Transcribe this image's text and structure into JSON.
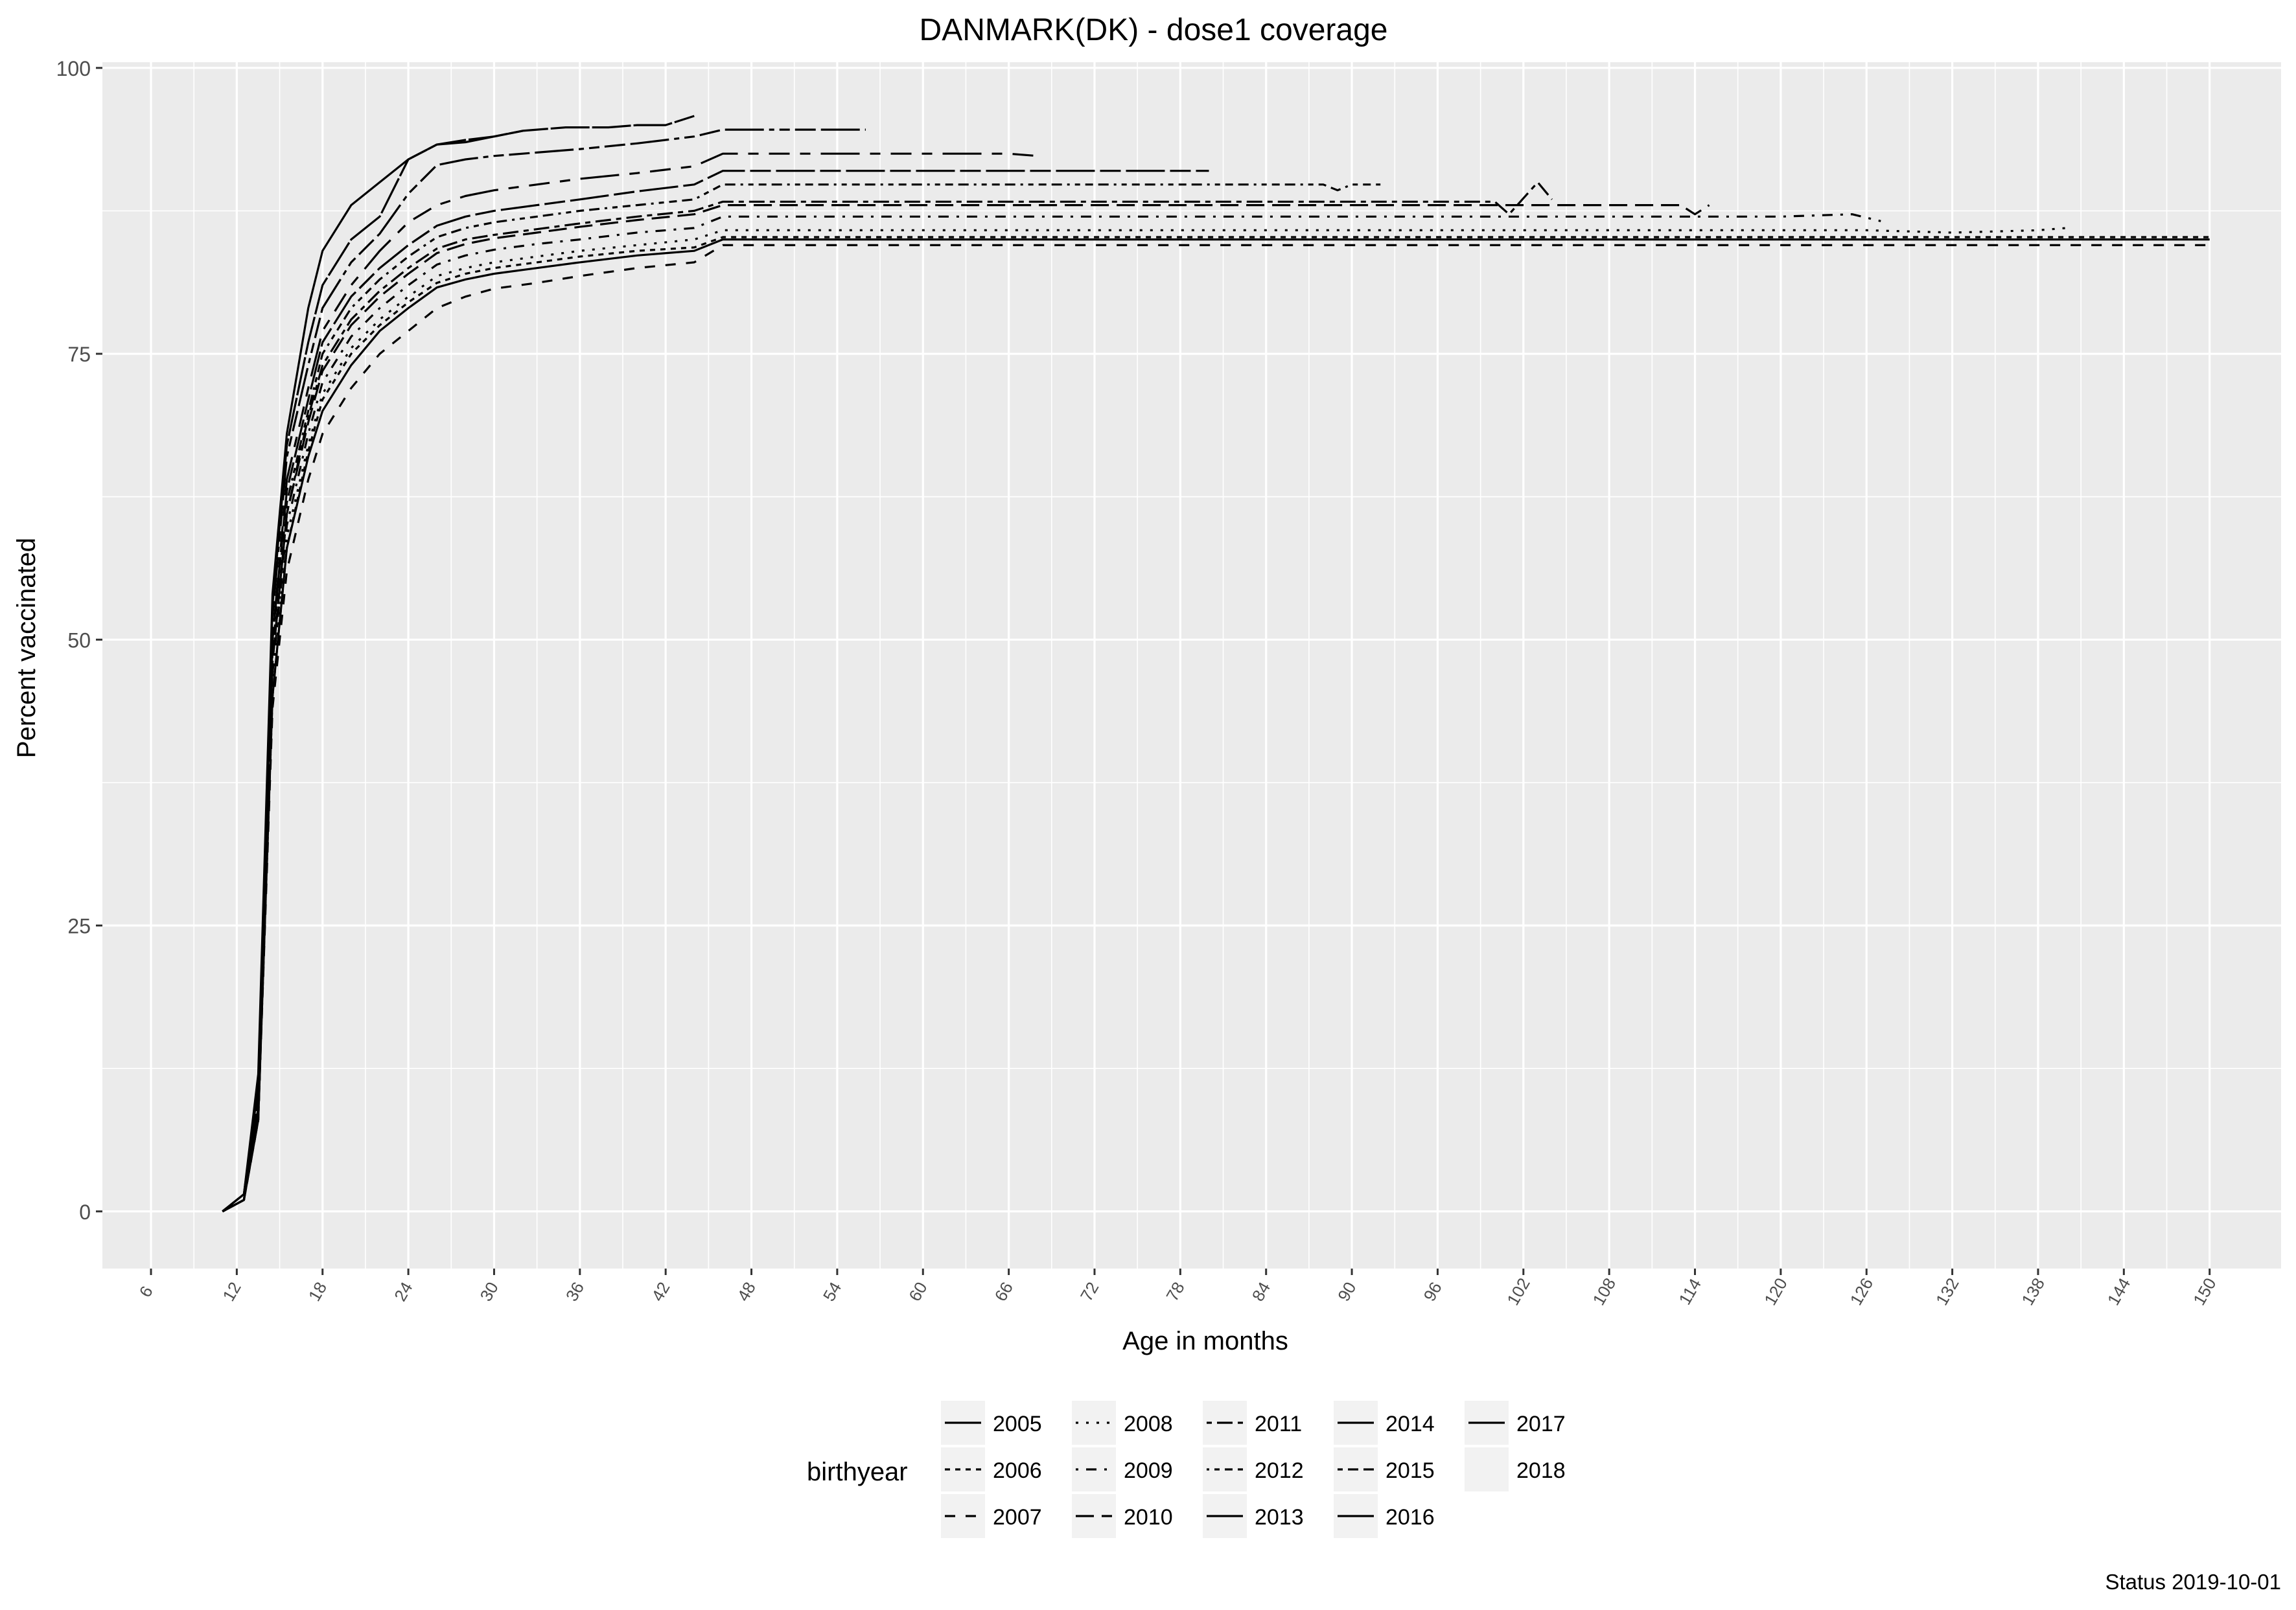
{
  "chart_data": {
    "type": "line",
    "title": "DANMARK(DK) - dose1 coverage",
    "xlabel": "Age in months",
    "ylabel": "Percent vaccinated",
    "caption": "Status 2019-10-01",
    "xlim": [
      2.6,
      155
    ],
    "ylim": [
      -5,
      100.5
    ],
    "x_ticks": [
      "6",
      "12",
      "18",
      "24",
      "30",
      "36",
      "42",
      "48",
      "54",
      "60",
      "66",
      "72",
      "78",
      "84",
      "90",
      "96",
      "102",
      "108",
      "114",
      "120",
      "126",
      "132",
      "138",
      "144",
      "150"
    ],
    "y_ticks": [
      "0",
      "25",
      "50",
      "75",
      "100"
    ],
    "grid": true,
    "panel_color": "#EBEBEB",
    "line_color": "#000000",
    "legend": {
      "title": "birthyear",
      "position": "bottom",
      "entries": [
        {
          "label": "2005",
          "dash": "solid"
        },
        {
          "label": "2006",
          "dash": "22"
        },
        {
          "label": "2007",
          "dash": "44"
        },
        {
          "label": "2008",
          "dash": "13"
        },
        {
          "label": "2009",
          "dash": "1343"
        },
        {
          "label": "2010",
          "dash": "73"
        },
        {
          "label": "2011",
          "dash": "2262"
        },
        {
          "label": "2012",
          "dash": "12223242"
        },
        {
          "label": "2013",
          "dash": "F282"
        },
        {
          "label": "2014",
          "dash": "F4448444"
        },
        {
          "label": "2015",
          "dash": "224282F2"
        },
        {
          "label": "2016",
          "dash": "F1"
        },
        {
          "label": "2017",
          "dash": "solid"
        },
        {
          "label": "2018",
          "dash": "none"
        }
      ]
    },
    "series": [
      {
        "name": "2005",
        "points": [
          [
            11,
            0
          ],
          [
            12.5,
            1
          ],
          [
            13.5,
            8
          ],
          [
            14.5,
            45
          ],
          [
            15.5,
            58
          ],
          [
            17,
            66
          ],
          [
            18,
            70
          ],
          [
            20,
            74
          ],
          [
            22,
            77
          ],
          [
            24,
            79
          ],
          [
            26,
            80.8
          ],
          [
            28,
            81.5
          ],
          [
            30,
            82
          ],
          [
            33,
            82.5
          ],
          [
            36,
            83
          ],
          [
            40,
            83.6
          ],
          [
            44,
            84
          ],
          [
            46,
            85
          ],
          [
            60,
            85
          ],
          [
            80,
            85
          ],
          [
            100,
            85
          ],
          [
            120,
            85
          ],
          [
            150,
            85
          ]
        ]
      },
      {
        "name": "2006",
        "points": [
          [
            11,
            0
          ],
          [
            12.5,
            1
          ],
          [
            13.5,
            8
          ],
          [
            14.5,
            45
          ],
          [
            15.5,
            58
          ],
          [
            17,
            66.5
          ],
          [
            18,
            71
          ],
          [
            20,
            75
          ],
          [
            22,
            77.5
          ],
          [
            24,
            79.5
          ],
          [
            26,
            81.2
          ],
          [
            28,
            82
          ],
          [
            30,
            82.5
          ],
          [
            33,
            83
          ],
          [
            36,
            83.5
          ],
          [
            40,
            84
          ],
          [
            44,
            84.3
          ],
          [
            46,
            85.2
          ],
          [
            60,
            85.2
          ],
          [
            100,
            85.2
          ],
          [
            150,
            85.2
          ]
        ]
      },
      {
        "name": "2007",
        "points": [
          [
            11,
            0
          ],
          [
            12.5,
            1
          ],
          [
            13.5,
            8
          ],
          [
            14.5,
            44
          ],
          [
            15.5,
            56
          ],
          [
            17,
            64
          ],
          [
            18,
            68
          ],
          [
            20,
            72
          ],
          [
            22,
            75
          ],
          [
            24,
            77
          ],
          [
            26,
            79
          ],
          [
            28,
            80
          ],
          [
            30,
            80.7
          ],
          [
            33,
            81.2
          ],
          [
            36,
            81.8
          ],
          [
            40,
            82.5
          ],
          [
            44,
            83
          ],
          [
            46,
            84.5
          ],
          [
            60,
            84.5
          ],
          [
            100,
            84.5
          ],
          [
            150,
            84.5
          ]
        ]
      },
      {
        "name": "2008",
        "points": [
          [
            11,
            0
          ],
          [
            12.5,
            1
          ],
          [
            13.5,
            8
          ],
          [
            14.5,
            46
          ],
          [
            15.5,
            59
          ],
          [
            17,
            67
          ],
          [
            18,
            71.5
          ],
          [
            20,
            75.5
          ],
          [
            22,
            78
          ],
          [
            24,
            80
          ],
          [
            26,
            81.8
          ],
          [
            28,
            82.5
          ],
          [
            30,
            83
          ],
          [
            33,
            83.5
          ],
          [
            36,
            84
          ],
          [
            40,
            84.5
          ],
          [
            44,
            85
          ],
          [
            46,
            85.8
          ],
          [
            60,
            85.8
          ],
          [
            100,
            85.8
          ],
          [
            126,
            85.8
          ],
          [
            132,
            85.6
          ],
          [
            138,
            85.8
          ],
          [
            140,
            86
          ]
        ]
      },
      {
        "name": "2009",
        "points": [
          [
            11,
            0
          ],
          [
            12.5,
            1
          ],
          [
            13.5,
            9
          ],
          [
            14.5,
            47
          ],
          [
            15.5,
            60
          ],
          [
            17,
            68
          ],
          [
            18,
            72.5
          ],
          [
            20,
            76.5
          ],
          [
            22,
            79
          ],
          [
            24,
            81
          ],
          [
            26,
            82.8
          ],
          [
            28,
            83.6
          ],
          [
            30,
            84.1
          ],
          [
            33,
            84.6
          ],
          [
            36,
            85
          ],
          [
            40,
            85.6
          ],
          [
            44,
            86
          ],
          [
            46,
            87
          ],
          [
            60,
            87
          ],
          [
            100,
            87
          ],
          [
            120,
            87
          ],
          [
            125,
            87.2
          ],
          [
            127,
            86.6
          ]
        ]
      },
      {
        "name": "2010",
        "points": [
          [
            11,
            0
          ],
          [
            12.5,
            1
          ],
          [
            13.5,
            9
          ],
          [
            14.5,
            48
          ],
          [
            15.5,
            61
          ],
          [
            17,
            69
          ],
          [
            18,
            73.5
          ],
          [
            20,
            77.5
          ],
          [
            22,
            80
          ],
          [
            24,
            82
          ],
          [
            26,
            83.8
          ],
          [
            28,
            84.6
          ],
          [
            30,
            85.1
          ],
          [
            33,
            85.6
          ],
          [
            36,
            86.1
          ],
          [
            40,
            86.7
          ],
          [
            44,
            87.2
          ],
          [
            46,
            88
          ],
          [
            60,
            88
          ],
          [
            100,
            88
          ],
          [
            113,
            88
          ],
          [
            114,
            87.2
          ],
          [
            115,
            88
          ]
        ]
      },
      {
        "name": "2011",
        "points": [
          [
            11,
            0
          ],
          [
            12.5,
            1
          ],
          [
            13.5,
            9
          ],
          [
            14.5,
            48
          ],
          [
            15.5,
            61
          ],
          [
            17,
            69.5
          ],
          [
            18,
            74
          ],
          [
            20,
            78
          ],
          [
            22,
            80.5
          ],
          [
            24,
            82.5
          ],
          [
            26,
            84.2
          ],
          [
            28,
            85
          ],
          [
            30,
            85.4
          ],
          [
            33,
            85.9
          ],
          [
            36,
            86.4
          ],
          [
            40,
            87
          ],
          [
            44,
            87.5
          ],
          [
            46,
            88.3
          ],
          [
            60,
            88.3
          ],
          [
            100,
            88.3
          ],
          [
            101,
            87.2
          ],
          [
            103,
            90
          ],
          [
            104,
            88.5
          ]
        ]
      },
      {
        "name": "2012",
        "points": [
          [
            11,
            0
          ],
          [
            12.5,
            1
          ],
          [
            13.5,
            9
          ],
          [
            14.5,
            49
          ],
          [
            15.5,
            62
          ],
          [
            17,
            70
          ],
          [
            18,
            75
          ],
          [
            20,
            79
          ],
          [
            22,
            81.5
          ],
          [
            24,
            83.5
          ],
          [
            26,
            85.2
          ],
          [
            28,
            86
          ],
          [
            30,
            86.5
          ],
          [
            33,
            87
          ],
          [
            36,
            87.5
          ],
          [
            40,
            88
          ],
          [
            44,
            88.5
          ],
          [
            46,
            89.8
          ],
          [
            60,
            89.8
          ],
          [
            80,
            89.8
          ],
          [
            88,
            89.8
          ],
          [
            89,
            89.3
          ],
          [
            90,
            89.8
          ],
          [
            92,
            89.8
          ]
        ]
      },
      {
        "name": "2013",
        "points": [
          [
            11,
            0
          ],
          [
            12.5,
            1
          ],
          [
            13.5,
            10
          ],
          [
            14.5,
            50
          ],
          [
            15.5,
            63
          ],
          [
            17,
            71
          ],
          [
            18,
            76
          ],
          [
            20,
            80
          ],
          [
            22,
            82.5
          ],
          [
            24,
            84.5
          ],
          [
            26,
            86.2
          ],
          [
            28,
            87
          ],
          [
            30,
            87.5
          ],
          [
            33,
            88
          ],
          [
            36,
            88.5
          ],
          [
            40,
            89.2
          ],
          [
            44,
            89.8
          ],
          [
            46,
            91
          ],
          [
            60,
            91
          ],
          [
            78,
            91
          ],
          [
            80,
            91
          ]
        ]
      },
      {
        "name": "2014",
        "points": [
          [
            11,
            0
          ],
          [
            12.5,
            1
          ],
          [
            13.5,
            10
          ],
          [
            14.5,
            50
          ],
          [
            15.5,
            64
          ],
          [
            17,
            72
          ],
          [
            18,
            77
          ],
          [
            20,
            81
          ],
          [
            22,
            84
          ],
          [
            24,
            86.5
          ],
          [
            26,
            88
          ],
          [
            28,
            88.8
          ],
          [
            30,
            89.3
          ],
          [
            33,
            89.8
          ],
          [
            36,
            90.3
          ],
          [
            40,
            90.8
          ],
          [
            44,
            91.4
          ],
          [
            46,
            92.5
          ],
          [
            60,
            92.5
          ],
          [
            66,
            92.5
          ],
          [
            68,
            92.3
          ]
        ]
      },
      {
        "name": "2015",
        "points": [
          [
            11,
            0
          ],
          [
            12.5,
            1.5
          ],
          [
            13.5,
            11
          ],
          [
            14.5,
            52
          ],
          [
            15.5,
            66
          ],
          [
            17,
            74
          ],
          [
            18,
            79
          ],
          [
            20,
            83
          ],
          [
            22,
            85.5
          ],
          [
            24,
            89
          ],
          [
            26,
            91.5
          ],
          [
            28,
            92
          ],
          [
            30,
            92.3
          ],
          [
            33,
            92.6
          ],
          [
            36,
            92.9
          ],
          [
            40,
            93.4
          ],
          [
            44,
            94
          ],
          [
            46,
            94.6
          ],
          [
            50,
            94.6
          ],
          [
            56,
            94.6
          ]
        ]
      },
      {
        "name": "2016",
        "points": [
          [
            11,
            0
          ],
          [
            12.5,
            1.5
          ],
          [
            13.5,
            11
          ],
          [
            14.5,
            53
          ],
          [
            15.5,
            67
          ],
          [
            17,
            76
          ],
          [
            18,
            81
          ],
          [
            20,
            85
          ],
          [
            22,
            87
          ],
          [
            24,
            92
          ],
          [
            26,
            93.3
          ],
          [
            28,
            93.7
          ],
          [
            30,
            94
          ],
          [
            32,
            94.5
          ],
          [
            35,
            94.8
          ],
          [
            38,
            94.8
          ],
          [
            40,
            95
          ],
          [
            42,
            95
          ],
          [
            44,
            95.8
          ]
        ]
      },
      {
        "name": "2017",
        "points": [
          [
            11,
            0
          ],
          [
            12.5,
            1.5
          ],
          [
            13.5,
            12
          ],
          [
            14.5,
            54
          ],
          [
            15.5,
            68
          ],
          [
            17,
            79
          ],
          [
            18,
            84
          ],
          [
            20,
            88
          ],
          [
            22,
            90
          ],
          [
            24,
            92
          ],
          [
            26,
            93.3
          ],
          [
            28,
            93.5
          ],
          [
            30,
            94
          ],
          [
            32,
            94.5
          ]
        ]
      }
    ]
  }
}
